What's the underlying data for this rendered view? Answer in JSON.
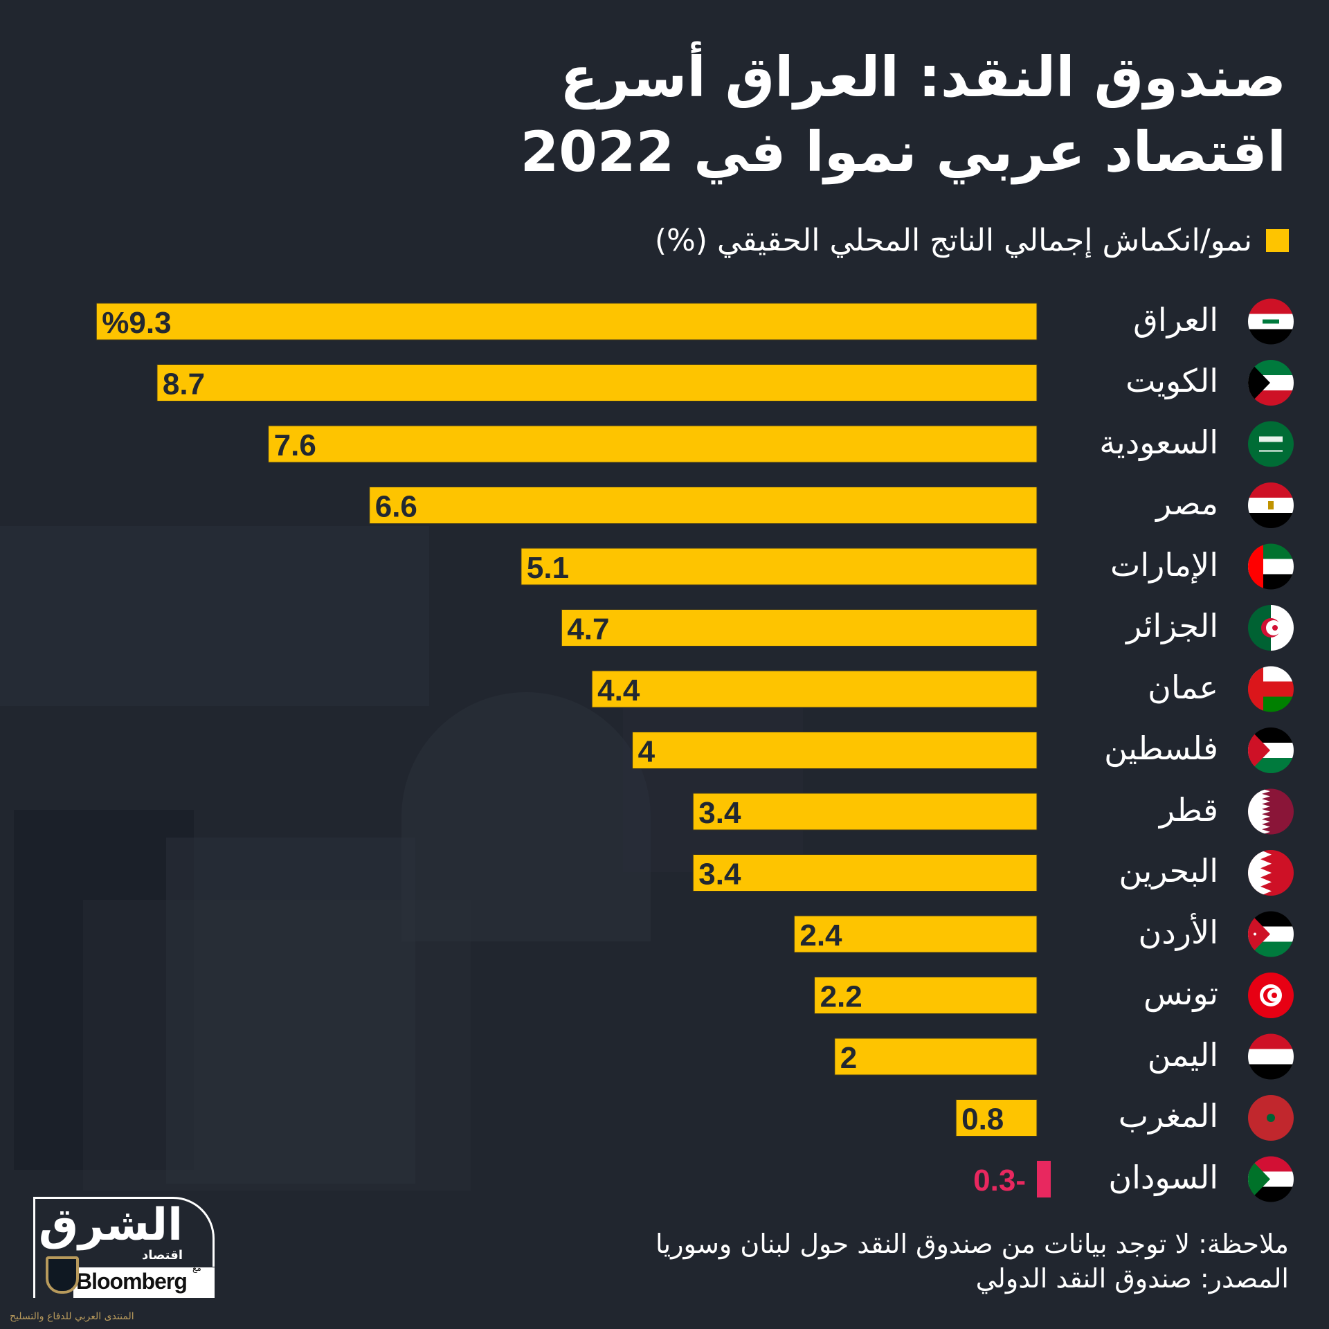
{
  "title": {
    "line1": "صندوق النقد: العراق أسرع",
    "line2": "اقتصاد عربي نموا في 2022"
  },
  "legend": {
    "label": "نمو/انكماش إجمالي الناتج المحلي الحقيقي (%)",
    "color": "#fec400"
  },
  "colors": {
    "background": "#21262f",
    "positive_bar": "#fec400",
    "negative_bar": "#e8285f",
    "bar_text": "#222831"
  },
  "chart_data": {
    "type": "bar",
    "orientation": "horizontal",
    "title": "صندوق النقد: العراق أسرع اقتصاد عربي نموا في 2022",
    "xlabel": "",
    "ylabel": "",
    "legend": [
      "نمو/انكماش إجمالي الناتج المحلي الحقيقي (%)"
    ],
    "legend_position": "top-right",
    "grid": false,
    "xlim": [
      -0.3,
      9.3
    ],
    "categories": [
      "العراق",
      "الكويت",
      "السعودية",
      "مصر",
      "الإمارات",
      "الجزائر",
      "عمان",
      "فلسطين",
      "قطر",
      "البحرين",
      "الأردن",
      "تونس",
      "اليمن",
      "المغرب",
      "السودان"
    ],
    "values": [
      9.3,
      8.7,
      7.6,
      6.6,
      5.1,
      4.7,
      4.4,
      4,
      3.4,
      3.4,
      2.4,
      2.2,
      2,
      0.8,
      -0.3
    ],
    "data_labels": [
      "%9.3",
      "8.7",
      "7.6",
      "6.6",
      "5.1",
      "4.7",
      "4.4",
      "4",
      "3.4",
      "3.4",
      "2.4",
      "2.2",
      "2",
      "0.8",
      "0.3-"
    ],
    "flags": [
      "iraq-flag",
      "kuwait-flag",
      "saudi-flag",
      "egypt-flag",
      "uae-flag",
      "algeria-flag",
      "oman-flag",
      "palestine-flag",
      "qatar-flag",
      "bahrain-flag",
      "jordan-flag",
      "tunisia-flag",
      "yemen-flag",
      "morocco-flag",
      "sudan-flag"
    ]
  },
  "footer": {
    "note": "ملاحظة: لا توجد بيانات من صندوق النقد حول لبنان وسوريا",
    "source": "المصدر: صندوق النقد الدولي"
  },
  "logo": {
    "brand": "الشرق",
    "sub": "اقتصاد",
    "with": "مع",
    "partner": "Bloomberg"
  },
  "watermark": {
    "text": "المنتدى العربي للدفاع والتسليح"
  }
}
